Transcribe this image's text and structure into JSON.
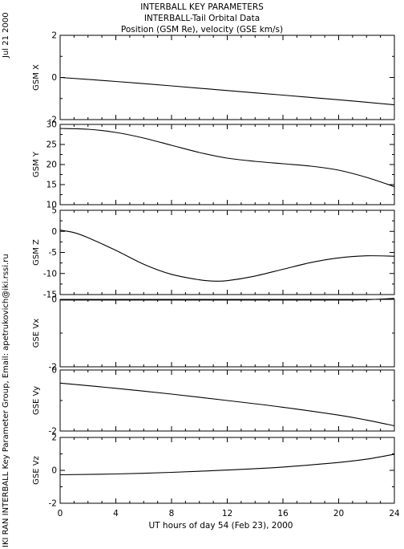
{
  "header": {
    "title": "INTERBALL KEY PARAMETERS",
    "subtitle": "INTERBALL-Tail Orbital Data",
    "caption": "Position (GSM Re), velocity (GSE km/s)"
  },
  "side": {
    "date": "Jul 21 2000",
    "credit": "IKI RAN INTERBALL Key Parameter Group, Email: apetrukovich@iki.rssi.ru"
  },
  "chart_data": {
    "type": "line",
    "x_label": "UT hours of day  54 (Feb 23), 2000",
    "x_range": [
      0,
      24
    ],
    "x_ticks": [
      0,
      4,
      8,
      12,
      16,
      20,
      24
    ],
    "panels": [
      {
        "name": "GSM X",
        "ylim": [
          -2,
          2
        ],
        "y_ticks": [
          -2,
          0,
          2
        ],
        "points": [
          [
            0,
            0.0
          ],
          [
            4,
            -0.19
          ],
          [
            8,
            -0.4
          ],
          [
            12,
            -0.62
          ],
          [
            16,
            -0.84
          ],
          [
            20,
            -1.06
          ],
          [
            24,
            -1.3
          ]
        ]
      },
      {
        "name": "GSM Y",
        "ylim": [
          10,
          30
        ],
        "y_ticks": [
          10,
          15,
          20,
          25,
          30
        ],
        "points": [
          [
            0,
            29
          ],
          [
            2,
            28.8
          ],
          [
            4,
            28
          ],
          [
            6,
            26.6
          ],
          [
            8,
            24.8
          ],
          [
            10,
            23
          ],
          [
            12,
            21.6
          ],
          [
            14,
            20.8
          ],
          [
            16,
            20.2
          ],
          [
            18,
            19.6
          ],
          [
            20,
            18.6
          ],
          [
            22,
            16.8
          ],
          [
            24,
            14.5
          ]
        ]
      },
      {
        "name": "GSM Z",
        "ylim": [
          -15,
          5
        ],
        "y_ticks": [
          -15,
          -10,
          -5,
          0,
          5
        ],
        "points": [
          [
            0,
            0.3
          ],
          [
            1,
            -0.3
          ],
          [
            2,
            -1.5
          ],
          [
            4,
            -4.5
          ],
          [
            6,
            -7.8
          ],
          [
            8,
            -10.2
          ],
          [
            10,
            -11.5
          ],
          [
            11,
            -11.8
          ],
          [
            12,
            -11.7
          ],
          [
            14,
            -10.6
          ],
          [
            16,
            -9.0
          ],
          [
            18,
            -7.4
          ],
          [
            20,
            -6.3
          ],
          [
            22,
            -5.8
          ],
          [
            24,
            -5.9
          ]
        ]
      },
      {
        "name": "GSE Vx",
        "ylim": [
          -2,
          0
        ],
        "y_ticks": [
          -2,
          0
        ],
        "points": [
          [
            0,
            -0.02
          ],
          [
            4,
            -0.02
          ],
          [
            8,
            -0.02
          ],
          [
            12,
            -0.02
          ],
          [
            16,
            -0.02
          ],
          [
            20,
            -0.02
          ],
          [
            22,
            -0.01
          ],
          [
            24,
            0.03
          ]
        ]
      },
      {
        "name": "GSE Vy",
        "ylim": [
          -2,
          0
        ],
        "y_ticks": [
          -2,
          0
        ],
        "points": [
          [
            0,
            -0.43
          ],
          [
            4,
            -0.6
          ],
          [
            8,
            -0.79
          ],
          [
            12,
            -1.0
          ],
          [
            16,
            -1.22
          ],
          [
            20,
            -1.48
          ],
          [
            22,
            -1.64
          ],
          [
            24,
            -1.83
          ]
        ]
      },
      {
        "name": "GSE Vz",
        "ylim": [
          -2,
          2
        ],
        "y_ticks": [
          -2,
          0,
          2
        ],
        "points": [
          [
            0,
            -0.27
          ],
          [
            4,
            -0.22
          ],
          [
            8,
            -0.12
          ],
          [
            12,
            0.02
          ],
          [
            16,
            0.2
          ],
          [
            20,
            0.48
          ],
          [
            22,
            0.68
          ],
          [
            24,
            0.98
          ]
        ]
      }
    ]
  }
}
